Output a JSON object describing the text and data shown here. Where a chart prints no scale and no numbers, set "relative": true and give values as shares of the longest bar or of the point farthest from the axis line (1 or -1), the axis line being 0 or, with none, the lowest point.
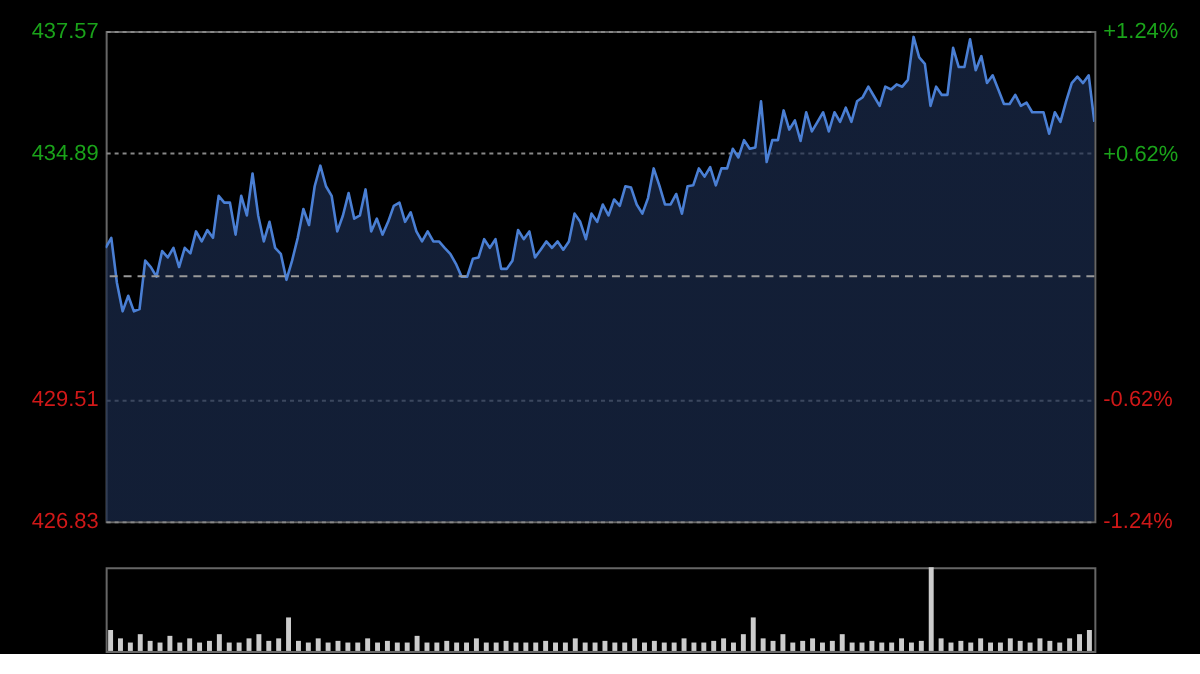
{
  "chart_data": [
    {
      "type": "line",
      "categories": [
        null,
        null,
        null,
        null,
        null,
        null,
        null,
        null,
        null,
        null,
        null,
        null,
        null,
        null,
        null,
        null,
        null,
        null,
        null,
        null,
        null,
        null,
        null,
        null,
        null,
        null,
        null,
        null,
        null,
        null,
        null,
        null,
        null,
        null,
        null,
        null,
        null,
        null,
        null,
        null,
        null,
        null,
        null,
        null,
        null,
        null,
        null,
        null,
        null,
        null,
        null,
        null,
        null,
        null,
        null,
        null,
        null,
        null,
        null,
        null,
        null,
        null,
        null,
        null,
        null,
        null,
        null,
        null,
        null,
        null,
        null,
        null,
        null,
        null,
        null,
        null,
        null,
        null,
        null,
        null,
        null,
        null,
        null,
        null,
        null,
        null,
        null,
        null,
        null,
        null,
        null,
        null,
        null,
        null,
        null,
        null,
        null,
        null,
        null,
        null,
        null,
        null,
        null,
        null,
        null,
        null,
        null,
        null,
        null,
        null,
        null,
        null,
        null,
        null,
        null,
        null,
        null,
        null,
        null,
        null,
        null,
        null,
        null,
        null,
        null,
        null,
        null,
        null,
        null,
        null,
        null,
        null,
        null,
        null,
        null,
        null,
        null,
        null,
        null,
        null,
        null,
        null,
        null,
        null,
        null,
        null,
        null,
        null,
        null,
        null,
        null,
        null,
        null,
        null,
        null,
        null,
        null,
        null,
        null,
        null,
        null,
        null,
        null,
        null,
        null,
        null,
        null,
        null,
        null,
        null,
        null,
        null,
        null,
        null,
        null,
        null
      ],
      "series": [
        {
          "color": "#4a7fd4",
          "values": [
            432.82,
            433.04,
            432.05,
            431.43,
            431.77,
            431.43,
            431.48,
            432.54,
            432.4,
            432.19,
            432.75,
            432.61,
            432.82,
            432.4,
            432.82,
            432.7,
            433.18,
            432.96,
            433.21,
            433.04,
            433.96,
            433.81,
            433.81,
            433.11,
            433.96,
            433.53,
            434.45,
            433.53,
            432.96,
            433.39,
            432.82,
            432.69,
            432.12,
            432.54,
            433.04,
            433.67,
            433.32,
            434.17,
            434.62,
            434.17,
            433.96,
            433.18,
            433.53,
            434.02,
            433.46,
            433.53,
            434.1,
            433.18,
            433.46,
            433.11,
            433.39,
            433.74,
            433.81,
            433.39,
            433.6,
            433.18,
            432.96,
            433.18,
            432.96,
            432.96,
            432.82,
            432.69,
            432.47,
            432.19,
            432.19,
            432.58,
            432.61,
            433.01,
            432.82,
            433.01,
            432.36,
            432.36,
            432.54,
            433.21,
            433.01,
            433.18,
            432.61,
            432.78,
            432.96,
            432.82,
            432.96,
            432.78,
            432.96,
            433.57,
            433.39,
            433.01,
            433.57,
            433.39,
            433.77,
            433.53,
            433.88,
            433.74,
            434.17,
            434.14,
            433.77,
            433.57,
            433.91,
            434.56,
            434.19,
            433.77,
            433.77,
            434.0,
            433.57,
            434.17,
            434.19,
            434.56,
            434.38,
            434.59,
            434.19,
            434.56,
            434.56,
            434.99,
            434.8,
            435.18,
            434.99,
            435.02,
            436.03,
            434.7,
            435.18,
            435.18,
            435.83,
            435.41,
            435.61,
            435.16,
            435.79,
            435.37,
            435.58,
            435.79,
            435.37,
            435.79,
            435.58,
            435.89,
            435.58,
            436.03,
            436.12,
            436.35,
            436.14,
            435.93,
            436.35,
            436.29,
            436.4,
            436.35,
            436.5,
            437.44,
            436.99,
            436.85,
            435.93,
            436.35,
            436.17,
            436.17,
            437.2,
            436.78,
            436.78,
            437.39,
            436.71,
            437.02,
            436.43,
            436.6,
            436.29,
            435.97,
            435.97,
            436.17,
            435.93,
            436.0,
            435.79,
            435.79,
            435.79,
            435.32,
            435.79,
            435.58,
            436.03,
            436.43,
            436.57,
            436.43,
            436.6,
            435.58
          ]
        }
      ],
      "ylim": [
        426.83,
        437.57
      ],
      "yticks": [
        437.57,
        434.89,
        429.51,
        426.83
      ],
      "y2lim": [
        -1.24,
        1.24
      ],
      "y2ticks": [
        {
          "value": 1.24,
          "label": "+1.24%"
        },
        {
          "value": 0.62,
          "label": "+0.62%"
        },
        {
          "value": -0.62,
          "label": "-0.62%"
        },
        {
          "value": -1.24,
          "label": "-1.24%"
        }
      ],
      "grid": "y",
      "ref_lines": [
        {
          "axis": "y",
          "value": 432.2,
          "line_style": "dashed"
        }
      ]
    },
    {
      "type": "bar",
      "relative": true,
      "categories": [
        null,
        null,
        null,
        null,
        null,
        null,
        null,
        null,
        null,
        null,
        null,
        null,
        null,
        null,
        null,
        null,
        null,
        null,
        null,
        null,
        null,
        null,
        null,
        null,
        null,
        null,
        null,
        null,
        null,
        null,
        null,
        null,
        null,
        null,
        null,
        null,
        null,
        null,
        null,
        null,
        null,
        null,
        null,
        null,
        null,
        null,
        null,
        null,
        null,
        null,
        null,
        null,
        null,
        null,
        null,
        null,
        null,
        null,
        null,
        null,
        null,
        null,
        null,
        null,
        null,
        null,
        null,
        null,
        null,
        null,
        null,
        null,
        null,
        null,
        null,
        null,
        null,
        null,
        null,
        null,
        null,
        null,
        null,
        null,
        null,
        null,
        null,
        null,
        null,
        null,
        null,
        null,
        null,
        null,
        null,
        null,
        null,
        null,
        null,
        null
      ],
      "series": [
        {
          "color": "#cccccc",
          "values": [
            0.25,
            0.15,
            0.1,
            0.2,
            0.12,
            0.1,
            0.18,
            0.1,
            0.15,
            0.1,
            0.12,
            0.2,
            0.1,
            0.1,
            0.15,
            0.2,
            0.12,
            0.15,
            0.4,
            0.12,
            0.1,
            0.15,
            0.1,
            0.12,
            0.1,
            0.1,
            0.15,
            0.1,
            0.12,
            0.1,
            0.1,
            0.18,
            0.1,
            0.1,
            0.12,
            0.1,
            0.1,
            0.15,
            0.1,
            0.1,
            0.12,
            0.1,
            0.1,
            0.1,
            0.12,
            0.1,
            0.1,
            0.15,
            0.1,
            0.1,
            0.12,
            0.1,
            0.1,
            0.15,
            0.1,
            0.12,
            0.1,
            0.1,
            0.15,
            0.1,
            0.1,
            0.12,
            0.15,
            0.1,
            0.2,
            0.4,
            0.15,
            0.12,
            0.2,
            0.1,
            0.12,
            0.15,
            0.1,
            0.12,
            0.2,
            0.1,
            0.1,
            0.12,
            0.1,
            0.1,
            0.15,
            0.1,
            0.12,
            1,
            0.15,
            0.1,
            0.12,
            0.1,
            0.15,
            0.1,
            0.1,
            0.15,
            0.12,
            0.1,
            0.15,
            0.12,
            0.1,
            0.15,
            0.2,
            0.25
          ]
        }
      ]
    }
  ]
}
